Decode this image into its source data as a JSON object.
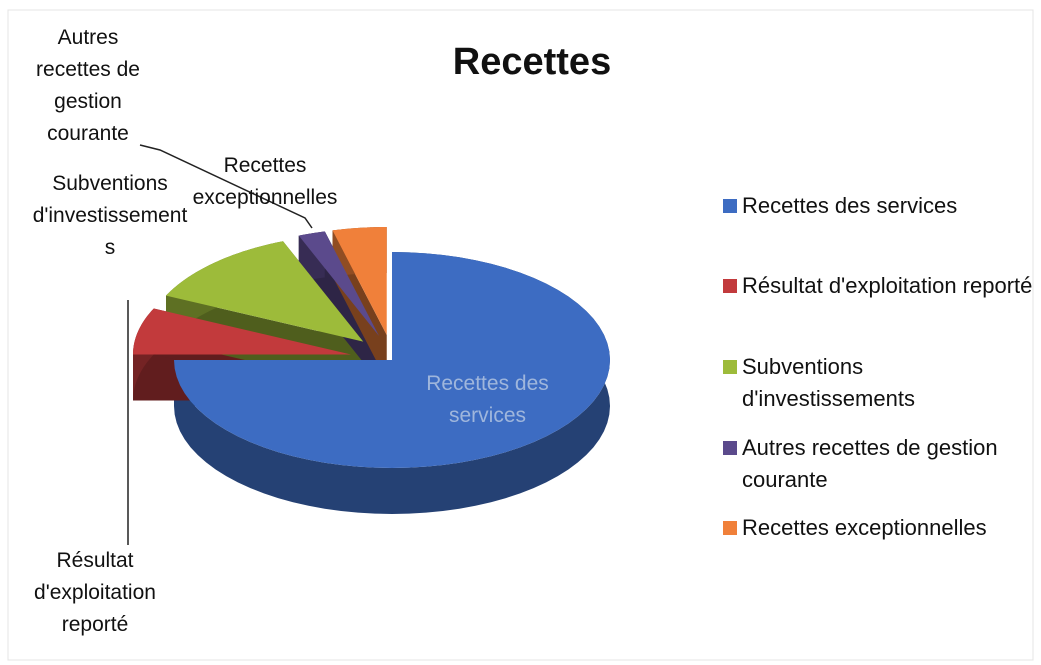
{
  "chart_data": {
    "type": "pie",
    "title": "Recettes",
    "categories": [
      "Recettes des services",
      "Résultat d'exploitation reporté",
      "Subventions d'investissements",
      "Autres recettes de gestion courante",
      "Recettes exceptionnelles"
    ],
    "values": [
      75,
      7,
      12,
      2,
      4
    ],
    "colors": [
      "#3d6cc2",
      "#c23a3c",
      "#9dbb3a",
      "#5b4a8c",
      "#f0803a"
    ],
    "legend": "right"
  }
}
